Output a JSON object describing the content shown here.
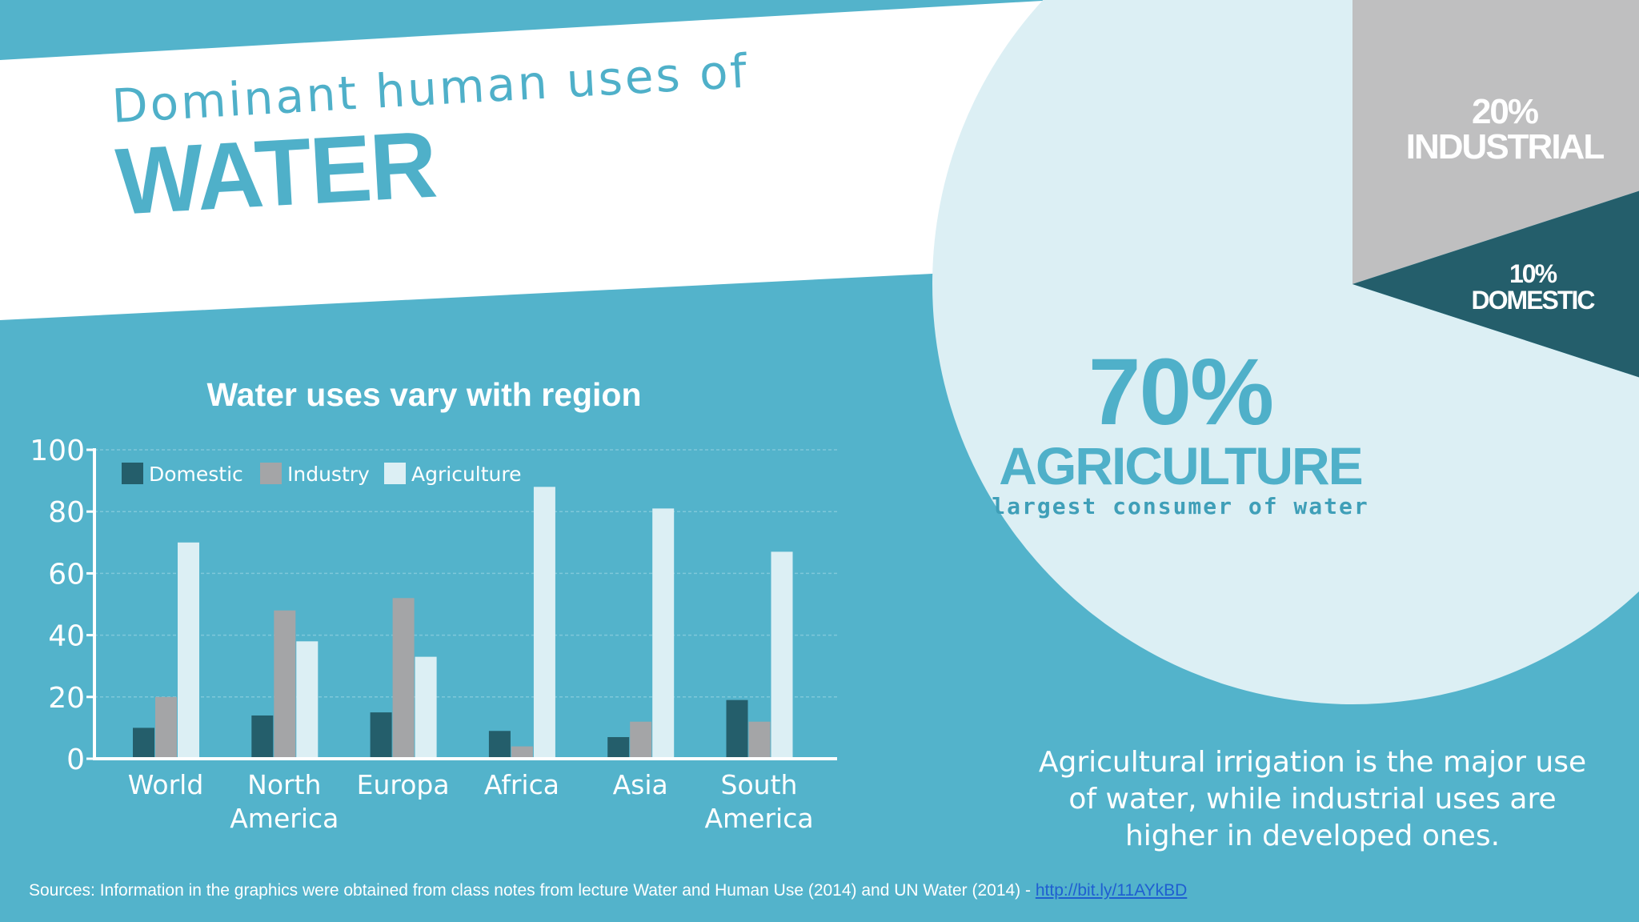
{
  "title": {
    "line1": "Dominant human uses of",
    "line2": "WATER"
  },
  "colors": {
    "background": "#53b3cb",
    "white_band": "#ffffff",
    "domestic": "#245e6b",
    "industry": "#a4a5a7",
    "agriculture": "#dceff4",
    "pie_agriculture": "#dceff4",
    "pie_industrial": "#bfbfc0",
    "pie_domestic": "#245e6b"
  },
  "chart_data": [
    {
      "type": "bar",
      "title": "Water uses vary with region",
      "categories": [
        [
          "World"
        ],
        [
          "North",
          "America"
        ],
        [
          "Europa"
        ],
        [
          "Africa"
        ],
        [
          "Asia"
        ],
        [
          "South",
          "America"
        ]
      ],
      "series": [
        {
          "name": "Domestic",
          "values": [
            10,
            14,
            15,
            9,
            7,
            19
          ]
        },
        {
          "name": "Industry",
          "values": [
            20,
            48,
            52,
            4,
            12,
            12
          ]
        },
        {
          "name": "Agriculture",
          "values": [
            70,
            38,
            33,
            88,
            81,
            67
          ]
        }
      ],
      "ylim": [
        0,
        100
      ],
      "yticks": [
        0,
        20,
        40,
        60,
        80,
        100
      ],
      "grid": true,
      "legend": "top-left"
    },
    {
      "type": "pie",
      "slices": [
        {
          "label": "AGRICULTURE",
          "value": 70,
          "pct": "70%",
          "subtitle": "largest consumer of water"
        },
        {
          "label": "INDUSTRIAL",
          "value": 20,
          "pct": "20%"
        },
        {
          "label": "DOMESTIC",
          "value": 10,
          "pct": "10%"
        }
      ]
    }
  ],
  "description": "Agricultural irrigation is the major use of water, while industrial uses are higher in developed ones.",
  "sources": {
    "text": "Sources: Information in the graphics were obtained from class notes from lecture Water and Human Use (2014) and UN Water (2014) - ",
    "link": "http://bit.ly/11AYkBD"
  }
}
